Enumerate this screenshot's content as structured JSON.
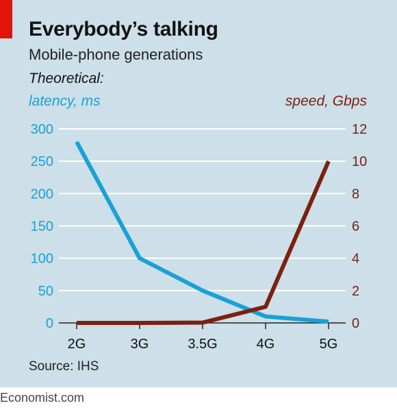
{
  "header": {
    "title": "Everybody’s talking",
    "subtitle": "Mobile-phone generations",
    "theoretical": "Theoretical:",
    "left_axis_label": "latency, ms",
    "right_axis_label": "speed, Gbps"
  },
  "source": "Source: IHS",
  "footer": "Economist.com",
  "colors": {
    "latency": "#1aa1d6",
    "speed": "#7b2111",
    "background": "#cddfe8",
    "accent": "#e3120b"
  },
  "chart_data": {
    "type": "line",
    "title": "Everybody’s talking",
    "subtitle": "Mobile-phone generations",
    "categories": [
      "2G",
      "3G",
      "3.5G",
      "4G",
      "5G"
    ],
    "series": [
      {
        "name": "latency, ms",
        "axis": "left",
        "values": [
          280,
          100,
          50,
          10,
          2
        ]
      },
      {
        "name": "speed, Gbps",
        "axis": "right",
        "values": [
          0.0,
          0.0,
          0.02,
          1.0,
          10.0
        ]
      }
    ],
    "left_axis": {
      "label": "latency, ms",
      "ylim": [
        0,
        300
      ],
      "ticks": [
        "0",
        "50",
        "100",
        "150",
        "200",
        "250",
        "300"
      ]
    },
    "right_axis": {
      "label": "speed, Gbps",
      "ylim": [
        0,
        12
      ],
      "ticks": [
        "0",
        "2",
        "4",
        "6",
        "8",
        "10",
        "12"
      ]
    },
    "grid": true,
    "legend": "none"
  }
}
